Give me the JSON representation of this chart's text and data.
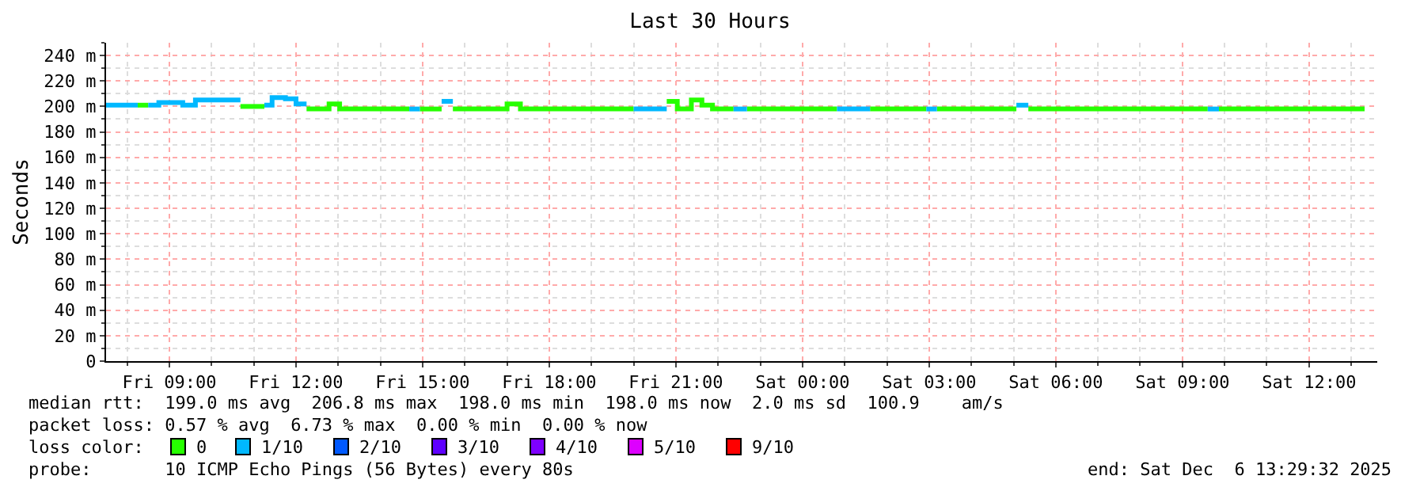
{
  "chart_data": {
    "type": "step",
    "title": "Last 30 Hours",
    "ylabel": "Seconds",
    "legend_title": "loss color:",
    "xlim": [
      "2025-12-05T07:30",
      "2025-12-06T13:37"
    ],
    "xticks": [
      {
        "value": "2025-12-05T09:00",
        "label": "Fri 09:00"
      },
      {
        "value": "2025-12-05T12:00",
        "label": "Fri 12:00"
      },
      {
        "value": "2025-12-05T15:00",
        "label": "Fri 15:00"
      },
      {
        "value": "2025-12-05T18:00",
        "label": "Fri 18:00"
      },
      {
        "value": "2025-12-05T21:00",
        "label": "Fri 21:00"
      },
      {
        "value": "2025-12-06T00:00",
        "label": "Sat 00:00"
      },
      {
        "value": "2025-12-06T03:00",
        "label": "Sat 03:00"
      },
      {
        "value": "2025-12-06T06:00",
        "label": "Sat 06:00"
      },
      {
        "value": "2025-12-06T09:00",
        "label": "Sat 09:00"
      },
      {
        "value": "2025-12-06T12:00",
        "label": "Sat 12:00"
      }
    ],
    "ylim": [
      0,
      250
    ],
    "yticks": [
      0,
      {
        "value": 20,
        "label": "20 m"
      },
      {
        "value": 40,
        "label": "40 m"
      },
      {
        "value": 60,
        "label": "60 m"
      },
      {
        "value": 80,
        "label": "80 m"
      },
      {
        "value": 100,
        "label": "100 m"
      },
      {
        "value": 120,
        "label": "120 m"
      },
      {
        "value": 140,
        "label": "140 m"
      },
      {
        "value": 160,
        "label": "160 m"
      },
      {
        "value": 180,
        "label": "180 m"
      },
      {
        "value": 200,
        "label": "200 m"
      },
      {
        "value": 220,
        "label": "220 m"
      },
      {
        "value": 240,
        "label": "240 m"
      }
    ],
    "grid": true,
    "legend": "bottom",
    "line_style": "solid",
    "marker": "none",
    "series": [
      {
        "name": "0",
        "color": "#26ff00",
        "x": [
          "2025-12-05T08:15",
          "2025-12-05T08:30",
          null,
          "2025-12-05T10:41",
          "2025-12-05T11:15",
          null,
          "2025-12-05T12:15",
          "2025-12-05T12:47",
          "2025-12-05T13:02",
          "2025-12-05T14:41",
          null,
          "2025-12-05T14:56",
          "2025-12-05T15:27",
          null,
          "2025-12-05T15:43",
          "2025-12-05T17:00",
          "2025-12-05T17:19",
          "2025-12-05T20:00",
          null,
          "2025-12-05T20:47",
          "2025-12-05T21:02",
          "2025-12-05T21:22",
          "2025-12-05T21:37",
          "2025-12-05T21:52",
          "2025-12-05T22:22",
          null,
          "2025-12-05T22:41",
          "2025-12-06T00:49",
          null,
          "2025-12-06T01:36",
          "2025-12-06T02:56",
          null,
          "2025-12-06T03:11",
          "2025-12-06T05:04",
          null,
          "2025-12-06T05:21",
          "2025-12-06T09:36",
          null,
          "2025-12-06T09:52",
          "2025-12-06T13:19"
        ],
        "values": [
          201,
          201,
          null,
          200,
          200,
          null,
          198,
          202,
          198,
          198,
          null,
          198,
          198,
          null,
          198,
          202,
          198,
          198,
          null,
          204,
          198,
          205,
          201,
          198,
          198,
          null,
          198,
          198,
          null,
          198,
          198,
          null,
          198,
          198,
          null,
          198,
          198,
          null,
          198,
          198
        ]
      },
      {
        "name": "1/10",
        "color": "#00b8ff",
        "x": [
          "2025-12-05T07:30",
          "2025-12-05T08:15",
          null,
          "2025-12-05T08:30",
          "2025-12-05T08:45",
          "2025-12-05T09:19",
          "2025-12-05T09:37",
          "2025-12-05T10:41",
          null,
          "2025-12-05T11:15",
          "2025-12-05T11:26",
          "2025-12-05T11:45",
          "2025-12-05T12:00",
          "2025-12-05T12:15",
          null,
          "2025-12-05T14:41",
          "2025-12-05T14:56",
          null,
          "2025-12-05T15:27",
          "2025-12-05T15:43",
          null,
          "2025-12-05T20:00",
          "2025-12-05T20:47",
          null,
          "2025-12-05T22:22",
          "2025-12-05T22:41",
          null,
          "2025-12-06T00:49",
          "2025-12-06T01:36",
          null,
          "2025-12-06T02:56",
          "2025-12-06T03:11",
          null,
          "2025-12-06T05:04",
          "2025-12-06T05:21",
          null,
          "2025-12-06T09:36",
          "2025-12-06T09:52"
        ],
        "values": [
          201,
          201,
          null,
          201,
          203,
          201,
          205,
          205,
          null,
          201,
          207,
          206,
          202,
          202,
          null,
          198,
          198,
          null,
          204,
          204,
          null,
          198,
          198,
          null,
          198,
          198,
          null,
          198,
          198,
          null,
          198,
          198,
          null,
          201,
          201,
          null,
          198,
          198
        ]
      },
      {
        "name": "2/10",
        "color": "#0059ff"
      },
      {
        "name": "3/10",
        "color": "#5e00ff"
      },
      {
        "name": "4/10",
        "color": "#7e00ff"
      },
      {
        "name": "5/10",
        "color": "#dd00ff"
      },
      {
        "name": "9/10",
        "color": "#ff0000"
      }
    ],
    "annotations": [
      "median rtt:  199.0 ms avg  206.8 ms max  198.0 ms min  198.0 ms now  2.0 ms sd  100.9    am/s",
      "packet loss: 0.57 % avg  6.73 % max  0.00 % min  0.00 % now",
      "probe:       10 ICMP Echo Pings (56 Bytes) every 80s",
      "end: Sat Dec  6 13:29:32 2025"
    ]
  }
}
